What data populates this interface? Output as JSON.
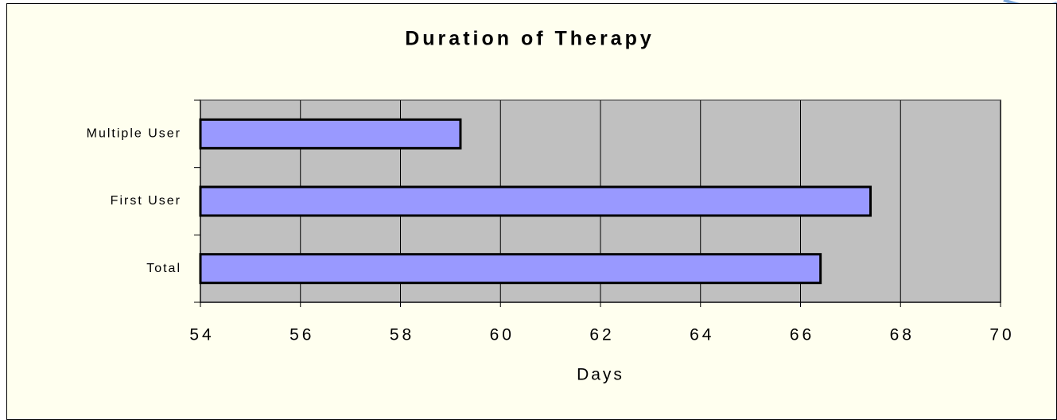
{
  "chart_data": {
    "type": "bar",
    "orientation": "horizontal",
    "title": "Duration of Therapy",
    "categories": [
      "Multiple User",
      "First User",
      "Total"
    ],
    "values": [
      59.2,
      67.4,
      66.4
    ],
    "color": "#9999ff",
    "xlabel": "Days",
    "xlim": [
      54,
      70
    ],
    "xticks": [
      54,
      56,
      58,
      60,
      62,
      64,
      66,
      68,
      70
    ],
    "grid": true
  }
}
